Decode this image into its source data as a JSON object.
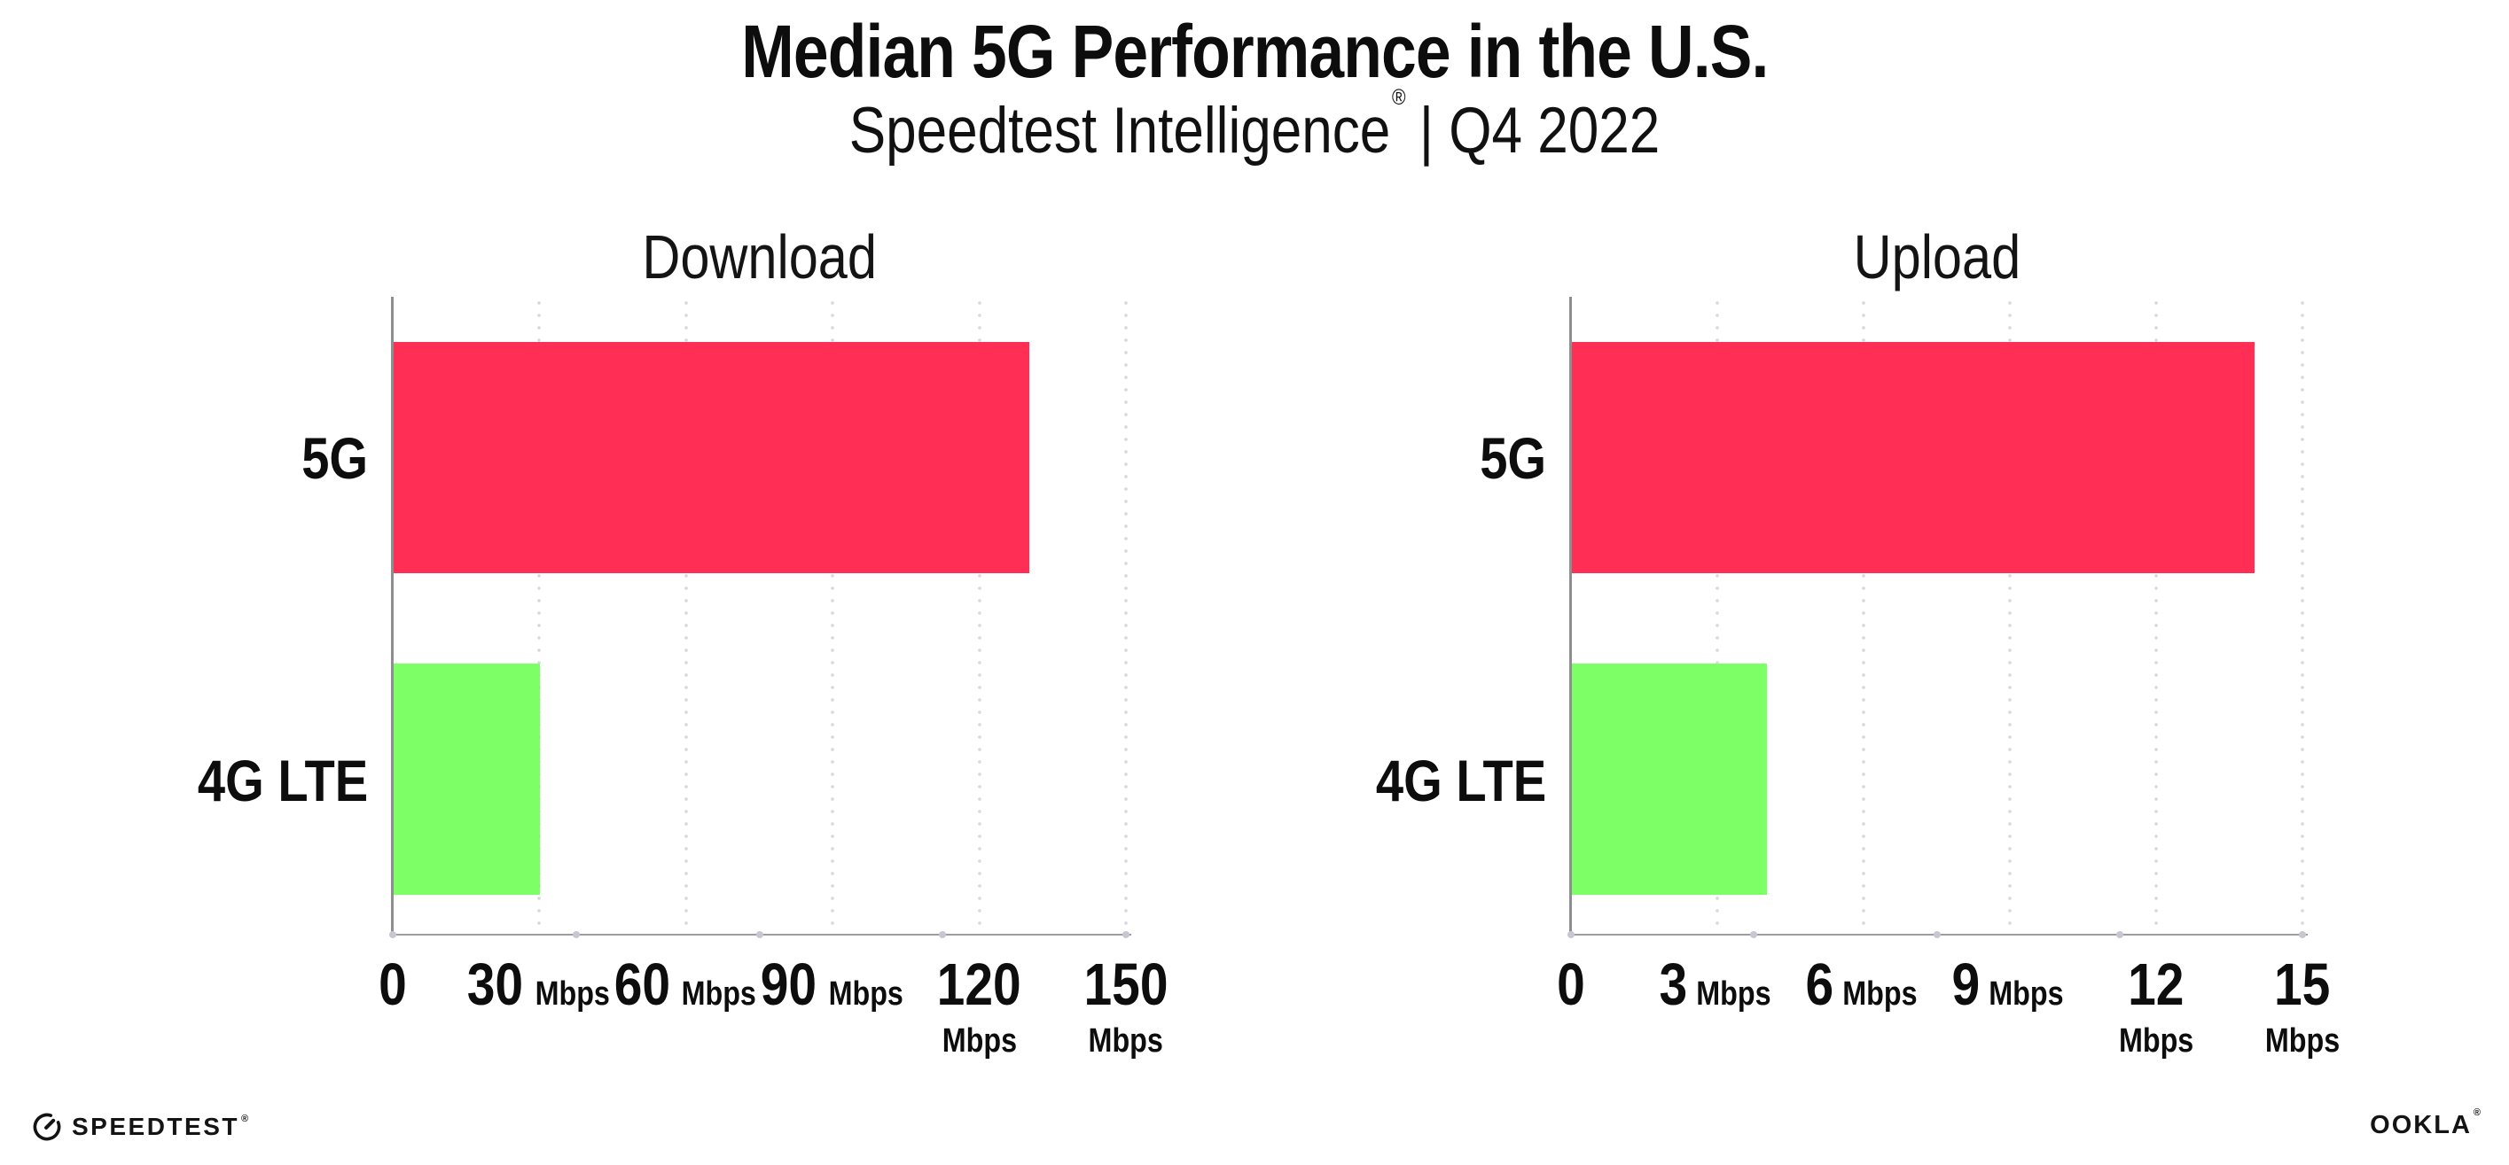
{
  "header": {
    "title": "Median 5G Performance in the U.S.",
    "subtitle_brand": "Speedtest Intelligence",
    "subtitle_mark": "®",
    "subtitle_rest": "| Q4 2022"
  },
  "chart_data": [
    {
      "type": "bar",
      "orientation": "horizontal",
      "title": "Download",
      "categories": [
        "5G",
        "4G LTE"
      ],
      "values": [
        130,
        30
      ],
      "unit": "Mbps",
      "xlim": [
        0,
        150
      ],
      "xticks": [
        0,
        30,
        60,
        90,
        120,
        150
      ],
      "bar_colors": [
        "#FF2E55",
        "#7DFF66"
      ],
      "grid": "vertical-dotted",
      "legend": "none"
    },
    {
      "type": "bar",
      "orientation": "horizontal",
      "title": "Upload",
      "categories": [
        "5G",
        "4G LTE"
      ],
      "values": [
        14,
        4
      ],
      "unit": "Mbps",
      "xlim": [
        0,
        15
      ],
      "xticks": [
        0,
        3,
        6,
        9,
        12,
        15
      ],
      "bar_colors": [
        "#FF2E55",
        "#7DFF66"
      ],
      "grid": "vertical-dotted",
      "legend": "none"
    }
  ],
  "footer": {
    "speedtest_label": "SPEEDTEST",
    "speedtest_mark": "®",
    "ookla_label": "OOKLA",
    "ookla_mark": "®"
  },
  "colors": {
    "bar_5g": "#FF2E55",
    "bar_4g_lte": "#7DFF66",
    "axis_line": "#9d9d9d",
    "gridline_dot": "#d9d9e2",
    "text": "#0d0d0d"
  }
}
